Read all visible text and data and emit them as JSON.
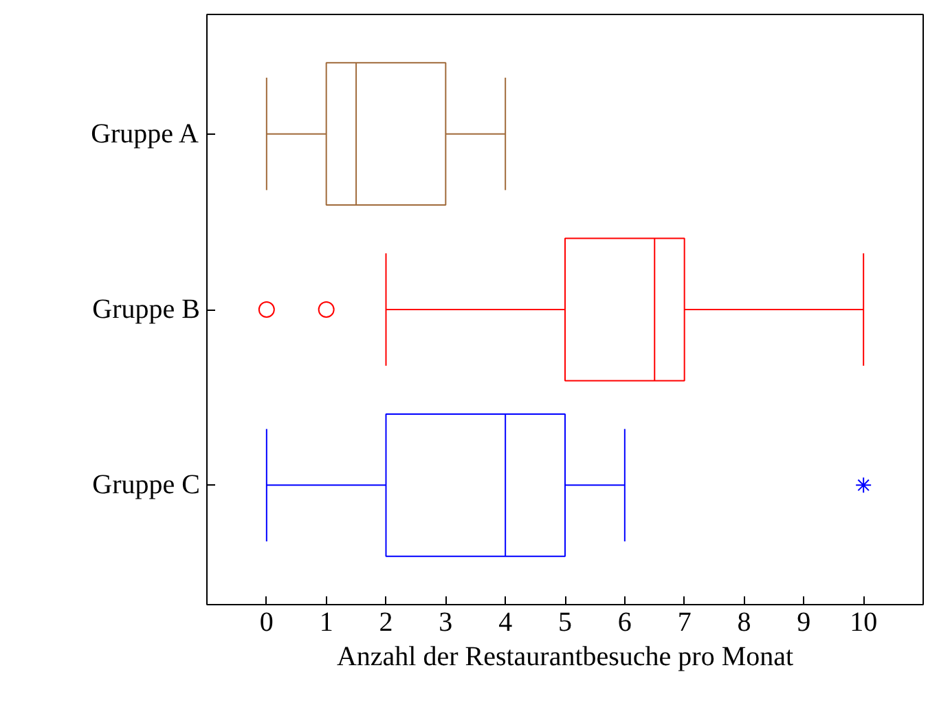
{
  "chart_data": {
    "type": "box",
    "orientation": "horizontal",
    "xlabel": "Anzahl der Restaurantbesuche pro Monat",
    "categories": [
      "Gruppe A",
      "Gruppe B",
      "Gruppe C"
    ],
    "xlim": [
      -1,
      11
    ],
    "xticks": [
      0,
      1,
      2,
      3,
      4,
      5,
      6,
      7,
      8,
      9,
      10
    ],
    "grid": false,
    "series": [
      {
        "color": "#a06a3a",
        "boxes": [
          {
            "low": 0,
            "q1": 1,
            "median": 1.5,
            "q3": 3,
            "high": 4
          },
          null,
          null
        ]
      },
      {
        "color": "#ff0000",
        "marker": "circle",
        "boxes": [
          null,
          {
            "low": 2,
            "q1": 5,
            "median": 6.5,
            "q3": 7,
            "high": 10,
            "outliers": [
              0,
              1
            ]
          },
          null
        ]
      },
      {
        "color": "#0000ff",
        "marker": "star",
        "boxes": [
          null,
          null,
          {
            "low": 0,
            "q1": 2,
            "median": 4,
            "q3": 5,
            "high": 6,
            "outliers": [
              10
            ]
          }
        ]
      }
    ]
  }
}
